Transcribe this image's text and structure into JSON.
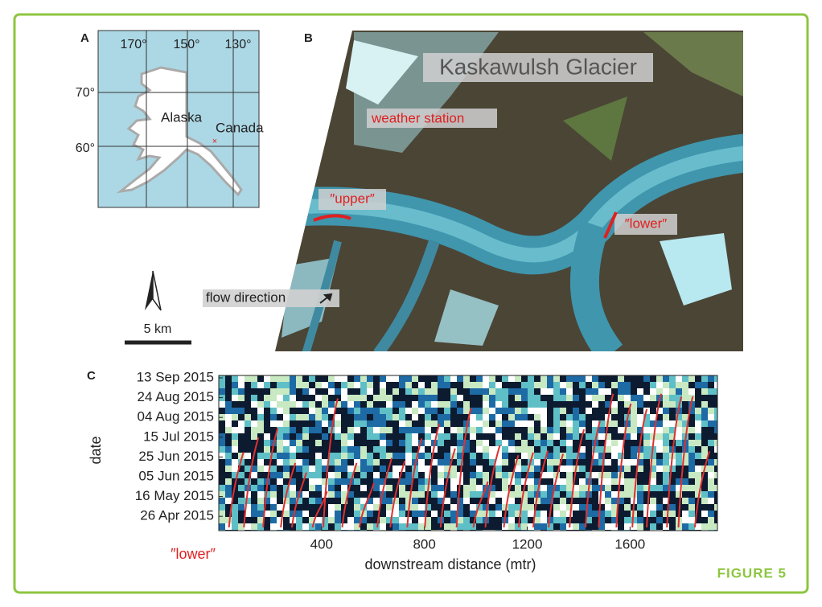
{
  "figure_label": "FIGURE 5",
  "panels": {
    "a": {
      "label": "A",
      "longitudes": [
        "170°",
        "150°",
        "130°"
      ],
      "latitudes": [
        "70°",
        "60°"
      ],
      "places": [
        "Alaska",
        "Canada"
      ]
    },
    "b": {
      "label": "B",
      "title": "Kaskawulsh Glacier",
      "weather_station": "weather station",
      "upper": "″upper″",
      "lower": "″lower″",
      "flow_direction": "flow direction",
      "scale_bar": "5 km"
    },
    "c": {
      "label": "C",
      "y_label": "date",
      "x_label": "downstream distance (mtr)",
      "note": "″lower″",
      "date_ticks": [
        "13 Sep 2015",
        "24 Aug 2015",
        "04 Aug 2015",
        "15 Jul 2015",
        "25 Jun 2015",
        "05 Jun 2015",
        "16 May 2015",
        "26 Apr 2015"
      ],
      "xlim": [
        0,
        1940
      ],
      "xticks": [
        400,
        800,
        1200,
        1600
      ]
    }
  }
}
